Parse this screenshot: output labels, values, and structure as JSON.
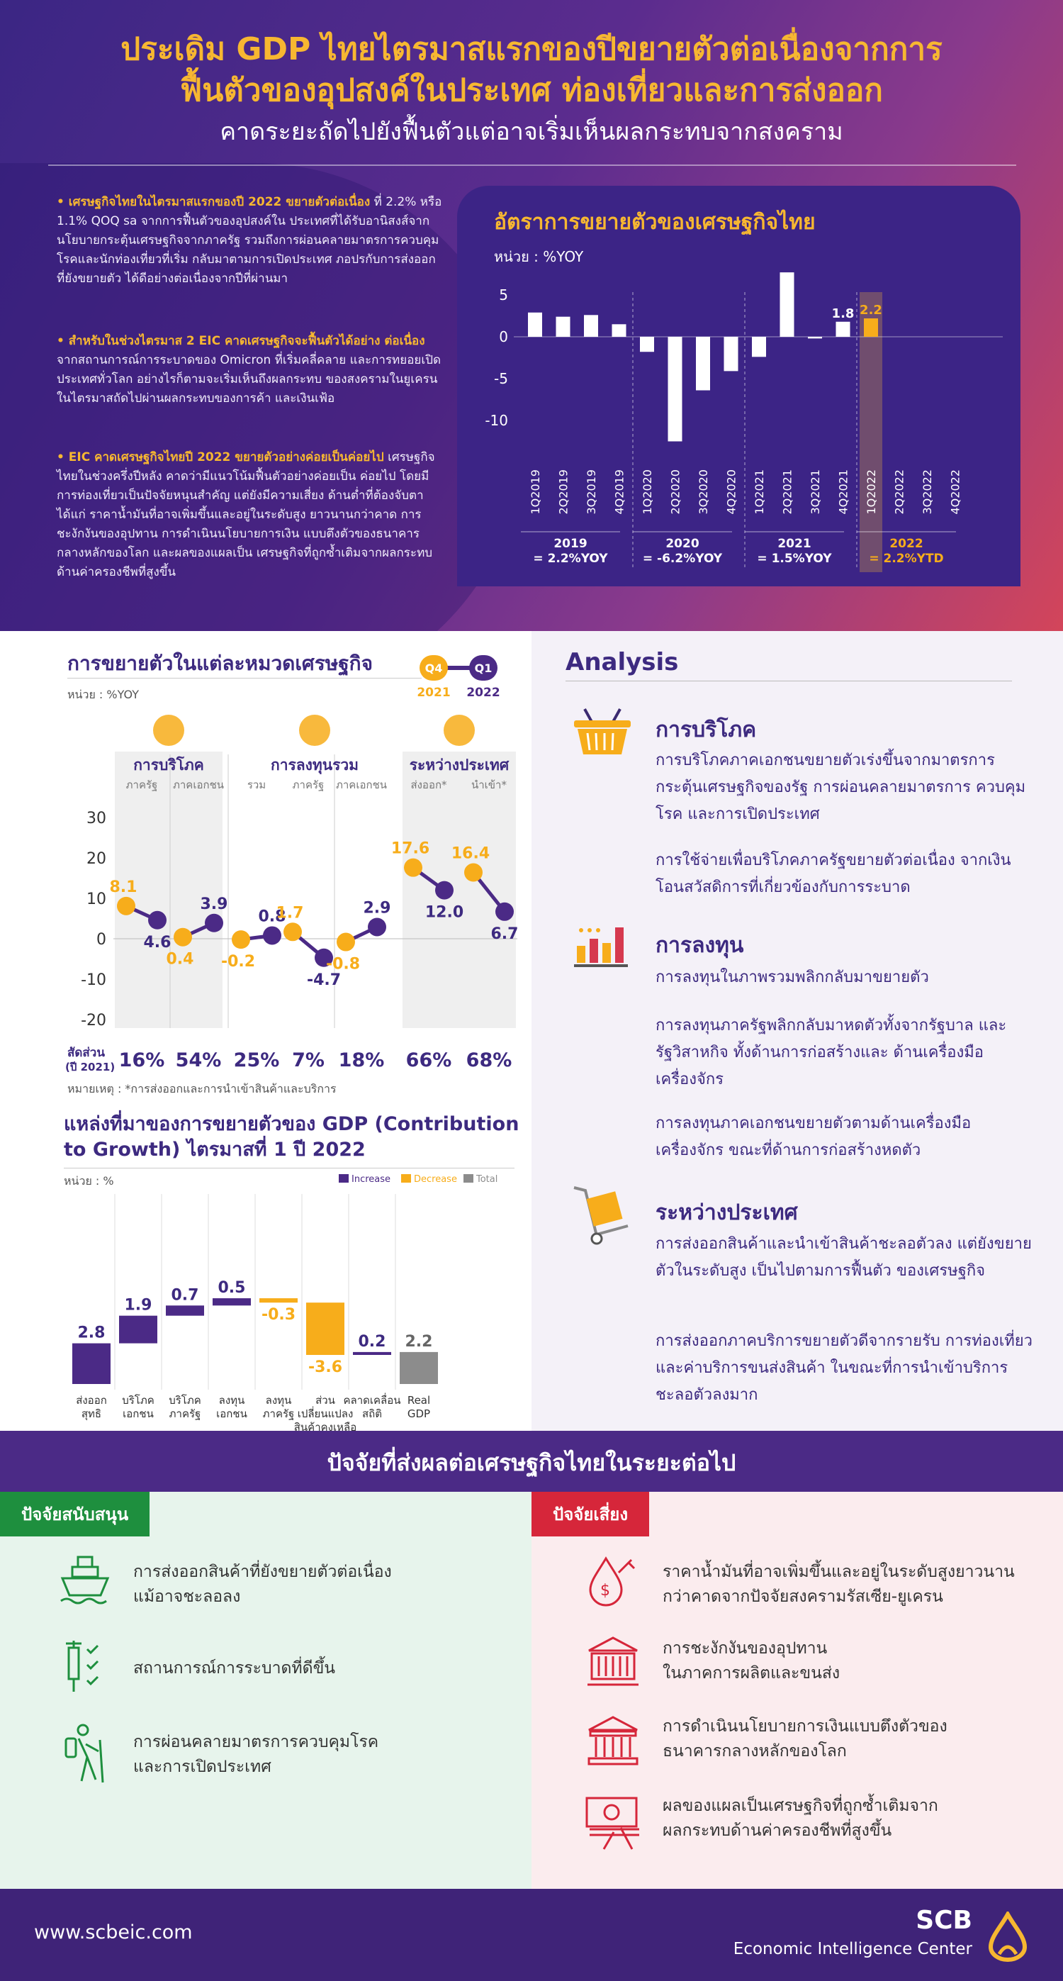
{
  "header": {
    "title_line1": "ประเดิม GDP ไทยไตรมาสแรกของปีขยายตัวต่อเนื่องจากการ",
    "title_line2": "ฟื้นตัวของอุปสงค์ในประเทศ ท่องเที่ยวและการส่งออก",
    "subtitle": "คาดระยะถัดไปยังฟื้นตัวแต่อาจเริ่มเห็นผลกระทบจากสงคราม"
  },
  "bullets": [
    {
      "lead": "• เศรษฐกิจไทยในไตรมาสแรกของปี 2022 ขยายตัวต่อเนื่อง",
      "body": "ที่ 2.2% หรือ 1.1% QOQ sa จากการฟื้นตัวของอุปสงค์ใน ประเทศที่ได้รับอานิสงส์จากนโยบายกระตุ้นเศรษฐกิจจากภาครัฐ รวมถึงการผ่อนคลายมาตรการควบคุมโรคและนักท่องเที่ยวที่เริ่ม กลับมาตามการเปิดประเทศ ภอปรกับการส่งออกที่ยังขยายตัว ได้ดีอย่างต่อเนื่องจากปีที่ผ่านมา"
    },
    {
      "lead": "• สำหรับในช่วงไตรมาส 2 EIC คาดเศรษฐกิจจะฟื้นตัวได้อย่าง ต่อเนื่อง",
      "body": "จากสถานการณ์การระบาดของ Omicron ที่เริ่มคลี่คลาย และการทยอยเปิดประเทศทั่วโลก อย่างไรก็ตามจะเริ่มเห็นถึงผลกระทบ ของสงครามในยูเครนในไตรมาสถัดไปผ่านผลกระทบของการค้า และเงินเฟ้อ"
    },
    {
      "lead": "• EIC คาดเศรษฐกิจไทยปี 2022 ขยายตัวอย่างค่อยเป็นค่อยไป",
      "body": "เศรษฐกิจไทยในช่วงครึ่งปีหลัง คาดว่ามีแนวโน้มฟื้นตัวอย่างค่อยเป็น ค่อยไป โดยมีการท่องเที่ยวเป็นปัจจัยหนุนสำคัญ แต่ยังมีความเสี่ยง ด้านต่ำที่ต้องจับตา ได้แก่ ราคาน้ำมันที่อาจเพิ่มขึ้นและอยู่ในระดับสูง ยาวนานกว่าคาด การชะงักงันของอุปทาน การดำเนินนโยบายการเงิน แบบตึงตัวของธนาคารกลางหลักของโลก และผลของแผลเป็น เศรษฐกิจที่ถูกซ้ำเติมจากผลกระทบด้านค่าครองชีพที่สูงขึ้น"
    }
  ],
  "chart_data": [
    {
      "type": "bar",
      "title": "อัตราการขยายตัวของเศรษฐกิจไทย",
      "unit": "หน่วย : %YOY",
      "categories": [
        "1Q2019",
        "2Q2019",
        "3Q2019",
        "4Q2019",
        "1Q2020",
        "2Q2020",
        "3Q2020",
        "4Q2020",
        "1Q2021",
        "2Q2021",
        "3Q2021",
        "4Q2021",
        "1Q2022",
        "2Q2022",
        "3Q2022",
        "4Q2022"
      ],
      "values": [
        2.9,
        2.4,
        2.6,
        1.5,
        -1.8,
        -12.5,
        -6.4,
        -4.1,
        -2.4,
        7.7,
        -0.2,
        1.8,
        2.2,
        null,
        null,
        null
      ],
      "labels": {
        "11": "1.8",
        "12": "2.2"
      },
      "yticks": [
        "5",
        "0",
        "-5",
        "-10"
      ],
      "ylim": [
        -13,
        8
      ],
      "year_summary": [
        {
          "year": "2019",
          "value": "= 2.2%YOY"
        },
        {
          "year": "2020",
          "value": "= -6.2%YOY"
        },
        {
          "year": "2021",
          "value": "= 1.5%YOY"
        },
        {
          "year": "2022",
          "value": "= 2.2%YTD"
        }
      ]
    },
    {
      "type": "scatter",
      "title": "การขยายตัวในแต่ละหมวดเศรษฐกิจ",
      "unit": "หน่วย : %YOY",
      "legend": {
        "q4": "Q4",
        "q4_year": "2021",
        "q1": "Q1",
        "q1_year": "2022"
      },
      "groups": [
        {
          "name": "การบริโภค",
          "subs": [
            "ภาครัฐ",
            "ภาคเอกชน"
          ]
        },
        {
          "name": "การลงทุนรวม",
          "subs": [
            "รวม",
            "ภาครัฐ",
            "ภาคเอกชน"
          ]
        },
        {
          "name": "ระหว่างประเทศ",
          "subs": [
            "ส่งออก*",
            "นำเข้า*"
          ]
        }
      ],
      "series": [
        {
          "name": "Q4 2021",
          "values": [
            8.1,
            0.4,
            -0.2,
            1.7,
            -0.8,
            17.6,
            16.4
          ]
        },
        {
          "name": "Q1 2022",
          "values": [
            4.6,
            3.9,
            0.8,
            -4.7,
            2.9,
            12.0,
            6.7
          ]
        }
      ],
      "value_labels": {
        "q4": [
          "8.1",
          "0.4",
          "-0.2",
          "1.7",
          "-0.8",
          "17.6",
          "16.4"
        ],
        "q1": [
          "4.6",
          "3.9",
          "0.8",
          "-4.7",
          "2.9",
          "12.0",
          "6.7"
        ]
      },
      "yticks": [
        "30",
        "20",
        "10",
        "0",
        "-10",
        "-20"
      ],
      "ylim": [
        -20,
        30
      ],
      "share_label": "สัดส่วน",
      "share_label2": "(ปี 2021)",
      "shares": [
        "16%",
        "54%",
        "25%",
        "7%",
        "18%",
        "66%",
        "68%"
      ],
      "note": "หมายเหตุ : *การส่งออกและการนำเข้าสินค้าและบริการ"
    },
    {
      "type": "bar",
      "title_line1": "แหล่งที่มาของการขยายตัวของ GDP (Contribution",
      "title_line2": "to Growth) ไตรมาสที่ 1 ปี 2022",
      "unit": "หน่วย : %",
      "legend": [
        "Increase",
        "Decrease",
        "Total"
      ],
      "categories": [
        "ส่งออก สุทธิ",
        "บริโภค เอกชน",
        "บริโภค ภาครัฐ",
        "ลงทุน เอกชน",
        "ลงทุน ภาครัฐ",
        "ส่วน เปลี่ยนแปลง สินค้าคงเหลือ",
        "คลาดเคลื่อน สถิติ",
        "Real GDP"
      ],
      "values": [
        2.8,
        1.9,
        0.7,
        0.5,
        -0.3,
        -3.6,
        0.2,
        2.2
      ],
      "value_labels": [
        "2.8",
        "1.9",
        "0.7",
        "0.5",
        "-0.3",
        "-3.6",
        "0.2",
        "2.2"
      ],
      "colors": {
        "increase": "#4b2a86",
        "decrease": "#f7ad1b",
        "total": "#8c8c8c"
      }
    }
  ],
  "analysis": {
    "title": "Analysis",
    "consumption": {
      "title": "การบริโภค",
      "p1": "การบริโภคภาคเอกชนขยายตัวเร่งขึ้นจากมาตรการ กระตุ้นเศรษฐกิจของรัฐ การผ่อนคลายมาตรการ ควบคุมโรค และการเปิดประเทศ",
      "p2": "การใช้จ่ายเพื่อบริโภคภาครัฐขยายตัวต่อเนื่อง จากเงินโอนสวัสดิการที่เกี่ยวข้องกับการระบาด"
    },
    "investment": {
      "title": "การลงทุน",
      "p1": "การลงทุนในภาพรวมพลิกกลับมาขยายตัว",
      "p2": "การลงทุนภาครัฐพลิกกลับมาหดตัวทั้งจากรัฐบาล และรัฐวิสาหกิจ ทั้งด้านการก่อสร้างและ ด้านเครื่องมือเครื่องจักร",
      "p3": "การลงทุนภาคเอกชนขยายตัวตามด้านเครื่องมือ เครื่องจักร ขณะที่ด้านการก่อสร้างหดตัว"
    },
    "international": {
      "title": "ระหว่างประเทศ",
      "p1": "การส่งออกสินค้าและนำเข้าสินค้าชะลอตัวลง แต่ยังขยายตัวในระดับสูง เป็นไปตามการฟื้นตัว ของเศรษฐกิจ",
      "p2": "การส่งออกภาคบริการขยายตัวดีจากรายรับ การท่องเที่ยวและค่าบริการขนส่งสินค้า ในขณะที่การนำเข้าบริการชะลอตัวลงมาก"
    }
  },
  "factors": {
    "title": "ปัจจัยที่ส่งผลต่อเศรษฐกิจไทยในระยะต่อไป",
    "support_tag": "ปัจจัยสนับสนุน",
    "risk_tag": "ปัจจัยเสี่ยง",
    "support": [
      {
        "icon": "ship-icon",
        "l1": "การส่งออกสินค้าที่ยังขยายตัวต่อเนื่อง",
        "l2": "แม้อาจชะลอลง"
      },
      {
        "icon": "vaccine-checklist-icon",
        "l1": "สถานการณ์การระบาดที่ดีขึ้น",
        "l2": ""
      },
      {
        "icon": "hiker-icon",
        "l1": "การผ่อนคลายมาตรการควบคุมโรค",
        "l2": "และการเปิดประเทศ"
      }
    ],
    "risk": [
      {
        "icon": "oil-price-icon",
        "l1": "ราคาน้ำมันที่อาจเพิ่มขึ้นและอยู่ในระดับสูงยาวนาน",
        "l2": "กว่าคาดจากปัจจัยสงครามรัสเซีย-ยูเครน"
      },
      {
        "icon": "container-icon",
        "l1": "การชะงักงันของอุปทาน",
        "l2": "ในภาคการผลิตและขนส่ง"
      },
      {
        "icon": "central-bank-icon",
        "l1": "การดำเนินนโยบายการเงินแบบตึงตัวของ",
        "l2": "ธนาคารกลางหลักของโลก"
      },
      {
        "icon": "money-scar-icon",
        "l1": "ผลของแผลเป็นเศรษฐกิจที่ถูกซ้ำเติมจาก",
        "l2": "ผลกระทบด้านค่าครองชีพที่สูงขึ้น"
      }
    ]
  },
  "footer": {
    "url": "www.scbeic.com",
    "brand": "SCB",
    "center": "Economic Intelligence Center"
  }
}
